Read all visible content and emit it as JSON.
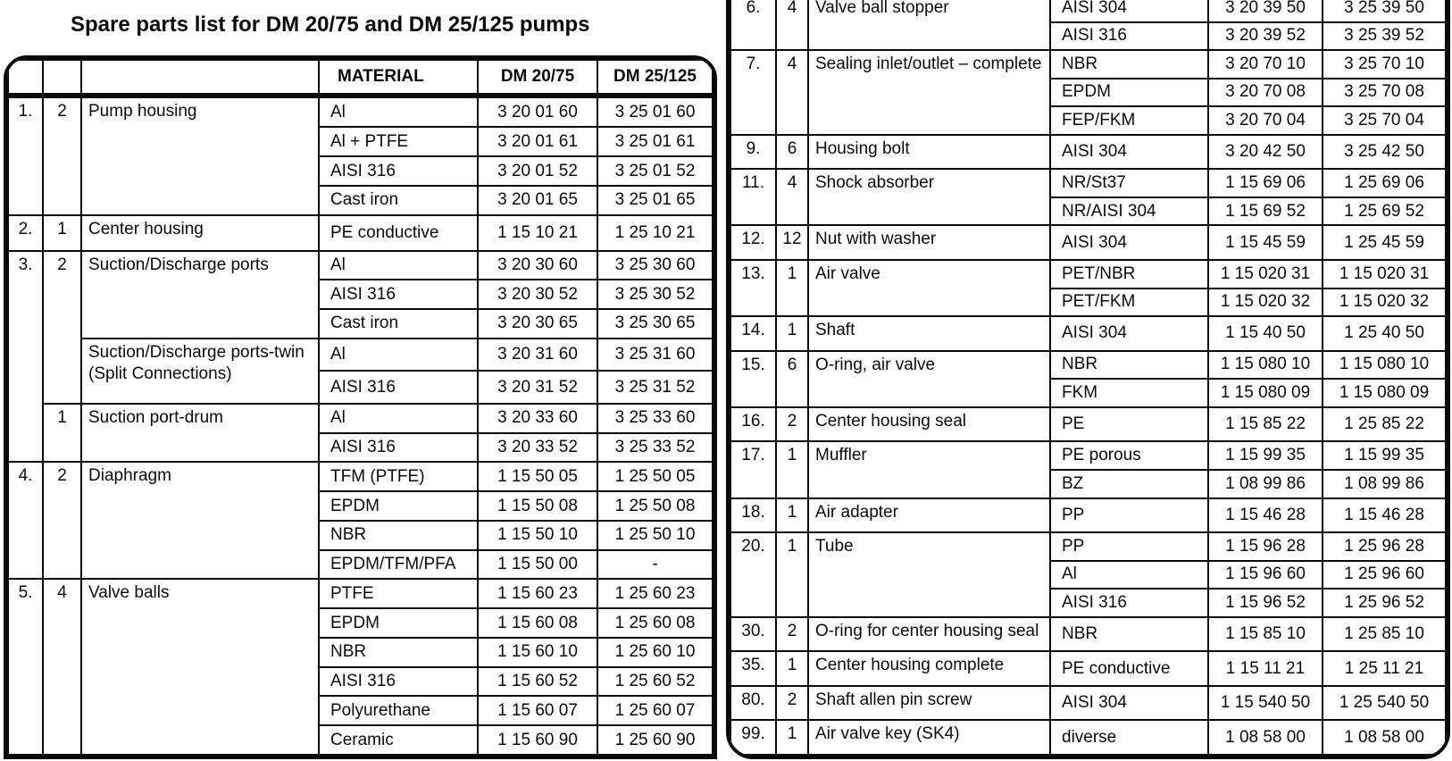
{
  "title": "Spare parts list for DM 20/75 and DM 25/125 pumps",
  "left_table": {
    "headers": [
      "",
      "",
      "",
      "MATERIAL",
      "DM 20/75",
      "DM 25/125"
    ],
    "items": [
      {
        "num": "1.",
        "num_span": 4,
        "qty": "2",
        "qty_span": 4,
        "name": "Pump housing",
        "variants": [
          {
            "material": "Al",
            "dm_20_75": "3 20 01 60",
            "dm_25_125": "3 25 01 60"
          },
          {
            "material": "Al + PTFE",
            "dm_20_75": "3 20 01 61",
            "dm_25_125": "3 25 01 61"
          },
          {
            "material": "AISI 316",
            "dm_20_75": "3 20 01 52",
            "dm_25_125": "3 25 01 52"
          },
          {
            "material": "Cast iron",
            "dm_20_75": "3 20 01 65",
            "dm_25_125": "3 25 01 65"
          }
        ]
      },
      {
        "num": "2.",
        "num_span": 1,
        "qty": "1",
        "qty_span": 1,
        "name": "Center housing",
        "variants": [
          {
            "material": "PE conductive",
            "dm_20_75": "1 15 10 21",
            "dm_25_125": "1 25 10 21"
          }
        ]
      },
      {
        "num": "3.",
        "num_span": 7,
        "qty": "2",
        "qty_span": 5,
        "name": "Suction/Discharge ports",
        "variants": [
          {
            "material": "Al",
            "dm_20_75": "3 20 30 60",
            "dm_25_125": "3 25 30 60"
          },
          {
            "material": "AISI 316",
            "dm_20_75": "3 20 30 52",
            "dm_25_125": "3 25 30 52"
          },
          {
            "material": "Cast iron",
            "dm_20_75": "3 20 30 65",
            "dm_25_125": "3 25 30 65"
          }
        ]
      },
      {
        "num": null,
        "qty": null,
        "name": "Suction/Discharge ports-twin (Split Connections)",
        "variants": [
          {
            "material": "Al",
            "dm_20_75": "3 20 31 60",
            "dm_25_125": "3 25 31 60"
          },
          {
            "material": "AISI 316",
            "dm_20_75": "3 20 31 52",
            "dm_25_125": "3 25 31 52"
          }
        ]
      },
      {
        "num": null,
        "qty": "1",
        "qty_span": 2,
        "name": "Suction port-drum",
        "variants": [
          {
            "material": "Al",
            "dm_20_75": "3 20 33 60",
            "dm_25_125": "3 25 33 60"
          },
          {
            "material": "AISI 316",
            "dm_20_75": "3 20 33 52",
            "dm_25_125": "3 25 33 52"
          }
        ]
      },
      {
        "num": "4.",
        "num_span": 4,
        "qty": "2",
        "qty_span": 4,
        "name": "Diaphragm",
        "variants": [
          {
            "material": "TFM (PTFE)",
            "dm_20_75": "1 15 50 05",
            "dm_25_125": "1 25 50 05"
          },
          {
            "material": "EPDM",
            "dm_20_75": "1 15 50 08",
            "dm_25_125": "1 25 50 08"
          },
          {
            "material": "NBR",
            "dm_20_75": "1 15 50 10",
            "dm_25_125": "1 25 50 10"
          },
          {
            "material": "EPDM/TFM/PFA",
            "dm_20_75": "1 15 50 00",
            "dm_25_125": "-"
          }
        ]
      },
      {
        "num": "5.",
        "num_span": 6,
        "qty": "4",
        "qty_span": 6,
        "name": "Valve balls",
        "variants": [
          {
            "material": "PTFE",
            "dm_20_75": "1 15 60 23",
            "dm_25_125": "1 25 60 23"
          },
          {
            "material": "EPDM",
            "dm_20_75": "1 15 60 08",
            "dm_25_125": "1 25 60 08"
          },
          {
            "material": "NBR",
            "dm_20_75": "1 15 60 10",
            "dm_25_125": "1 25 60 10"
          },
          {
            "material": "AISI 316",
            "dm_20_75": "1 15 60 52",
            "dm_25_125": "1 25 60 52"
          },
          {
            "material": "Polyurethane",
            "dm_20_75": "1 15 60 07",
            "dm_25_125": "1 25 60 07"
          },
          {
            "material": "Ceramic",
            "dm_20_75": "1 15 60 90",
            "dm_25_125": "1 25 60 90"
          }
        ]
      }
    ]
  },
  "right_table": {
    "headers": [],
    "items": [
      {
        "num": "6.",
        "num_span": 2,
        "qty": "4",
        "qty_span": 2,
        "name": "Valve ball stopper",
        "variants": [
          {
            "material": "AISI 304",
            "dm_20_75": "3 20 39 50",
            "dm_25_125": "3 25 39 50"
          },
          {
            "material": "AISI 316",
            "dm_20_75": "3 20 39 52",
            "dm_25_125": "3 25 39 52"
          }
        ]
      },
      {
        "num": "7.",
        "num_span": 3,
        "qty": "4",
        "qty_span": 3,
        "name": "Sealing inlet/outlet – complete",
        "variants": [
          {
            "material": "NBR",
            "dm_20_75": "3 20 70 10",
            "dm_25_125": "3 25 70 10"
          },
          {
            "material": "EPDM",
            "dm_20_75": "3 20 70 08",
            "dm_25_125": "3 25 70 08"
          },
          {
            "material": "FEP/FKM",
            "dm_20_75": "3 20 70 04",
            "dm_25_125": "3 25 70 04"
          }
        ]
      },
      {
        "num": "9.",
        "num_span": 1,
        "qty": "6",
        "qty_span": 1,
        "name": "Housing bolt",
        "variants": [
          {
            "material": "AISI 304",
            "dm_20_75": "3 20 42 50",
            "dm_25_125": "3 25 42 50"
          }
        ]
      },
      {
        "num": "11.",
        "num_span": 2,
        "qty": "4",
        "qty_span": 2,
        "name": "Shock absorber",
        "variants": [
          {
            "material": "NR/St37",
            "dm_20_75": "1 15 69 06",
            "dm_25_125": "1 25 69 06"
          },
          {
            "material": "NR/AISI 304",
            "dm_20_75": "1 15 69 52",
            "dm_25_125": "1 25 69 52"
          }
        ]
      },
      {
        "num": "12.",
        "num_span": 1,
        "qty": "12",
        "qty_span": 1,
        "name": "Nut with washer",
        "variants": [
          {
            "material": "AISI 304",
            "dm_20_75": "1 15 45 59",
            "dm_25_125": "1 25 45 59"
          }
        ]
      },
      {
        "num": "13.",
        "num_span": 2,
        "qty": "1",
        "qty_span": 2,
        "name": "Air valve",
        "variants": [
          {
            "material": "PET/NBR",
            "dm_20_75": "1 15 020 31",
            "dm_25_125": "1 15 020 31"
          },
          {
            "material": "PET/FKM",
            "dm_20_75": "1 15 020 32",
            "dm_25_125": "1 15 020 32"
          }
        ]
      },
      {
        "num": "14.",
        "num_span": 1,
        "qty": "1",
        "qty_span": 1,
        "name": "Shaft",
        "variants": [
          {
            "material": "AISI 304",
            "dm_20_75": "1 15 40 50",
            "dm_25_125": "1 25 40 50"
          }
        ]
      },
      {
        "num": "15.",
        "num_span": 2,
        "qty": "6",
        "qty_span": 2,
        "name": "O-ring, air valve",
        "variants": [
          {
            "material": "NBR",
            "dm_20_75": "1 15 080 10",
            "dm_25_125": "1 15 080 10"
          },
          {
            "material": "FKM",
            "dm_20_75": "1 15 080 09",
            "dm_25_125": "1 15 080 09"
          }
        ]
      },
      {
        "num": "16.",
        "num_span": 1,
        "qty": "2",
        "qty_span": 1,
        "name": "Center housing seal",
        "variants": [
          {
            "material": "PE",
            "dm_20_75": "1 15 85 22",
            "dm_25_125": "1 25 85 22"
          }
        ]
      },
      {
        "num": "17.",
        "num_span": 2,
        "qty": "1",
        "qty_span": 2,
        "name": "Muffler",
        "variants": [
          {
            "material": "PE porous",
            "dm_20_75": "1 15 99 35",
            "dm_25_125": "1 15 99 35"
          },
          {
            "material": "BZ",
            "dm_20_75": "1 08 99 86",
            "dm_25_125": "1 08 99 86"
          }
        ]
      },
      {
        "num": "18.",
        "num_span": 1,
        "qty": "1",
        "qty_span": 1,
        "name": "Air adapter",
        "variants": [
          {
            "material": "PP",
            "dm_20_75": "1 15 46 28",
            "dm_25_125": "1 15 46 28"
          }
        ]
      },
      {
        "num": "20.",
        "num_span": 3,
        "qty": "1",
        "qty_span": 3,
        "name": "Tube",
        "variants": [
          {
            "material": "PP",
            "dm_20_75": "1 15 96 28",
            "dm_25_125": "1 25 96 28"
          },
          {
            "material": "Al",
            "dm_20_75": "1 15 96 60",
            "dm_25_125": "1 25 96 60"
          },
          {
            "material": "AISI 316",
            "dm_20_75": "1 15 96 52",
            "dm_25_125": "1 25 96 52"
          }
        ]
      },
      {
        "num": "30.",
        "num_span": 1,
        "qty": "2",
        "qty_span": 1,
        "name": "O-ring for center housing seal",
        "variants": [
          {
            "material": "NBR",
            "dm_20_75": "1 15 85 10",
            "dm_25_125": "1 25 85 10"
          }
        ]
      },
      {
        "num": "35.",
        "num_span": 1,
        "qty": "1",
        "qty_span": 1,
        "name": "Center housing complete",
        "variants": [
          {
            "material": "PE conductive",
            "dm_20_75": "1 15 11 21",
            "dm_25_125": "1 25 11 21"
          }
        ]
      },
      {
        "num": "80.",
        "num_span": 1,
        "qty": "2",
        "qty_span": 1,
        "name": "Shaft allen pin screw",
        "variants": [
          {
            "material": "AISI 304",
            "dm_20_75": "1 15 540 50",
            "dm_25_125": "1 25 540 50"
          }
        ]
      },
      {
        "num": "99.",
        "num_span": 1,
        "qty": "1",
        "qty_span": 1,
        "name": "Air valve key (SK4)",
        "variants": [
          {
            "material": "diverse",
            "dm_20_75": "1 08 58 00",
            "dm_25_125": "1 08 58 00"
          }
        ]
      }
    ]
  }
}
